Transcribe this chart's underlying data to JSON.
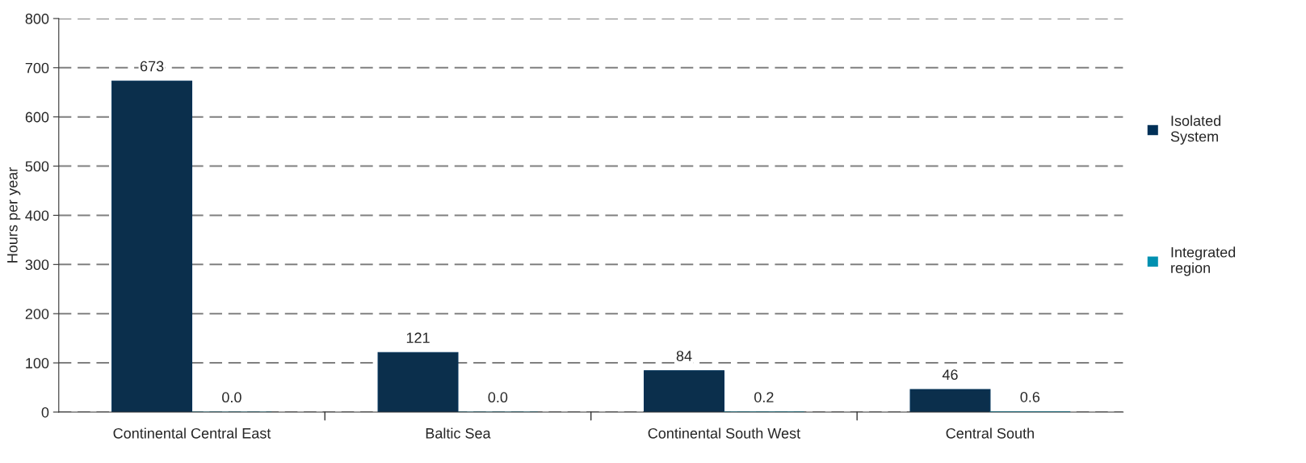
{
  "chart_data": {
    "type": "bar",
    "ylabel": "Hours per year",
    "categories": [
      "Continental Central East",
      "Baltic Sea",
      "Continental South West",
      "Central South"
    ],
    "series": [
      {
        "name": "Isolated System",
        "color": "#003057",
        "values": [
          673,
          121,
          84,
          46
        ],
        "value_labels": [
          "673",
          "121",
          "84",
          "46"
        ]
      },
      {
        "name": "Integrated region",
        "color": "#0090b0",
        "values": [
          0.0,
          0.0,
          0.2,
          0.6
        ],
        "value_labels": [
          "0.0",
          "0.0",
          "0.2",
          "0.6"
        ]
      }
    ],
    "ylim": [
      0,
      800
    ],
    "yticks": [
      0,
      100,
      200,
      300,
      400,
      500,
      600,
      700,
      800
    ],
    "grid": "y",
    "legend": "right"
  }
}
